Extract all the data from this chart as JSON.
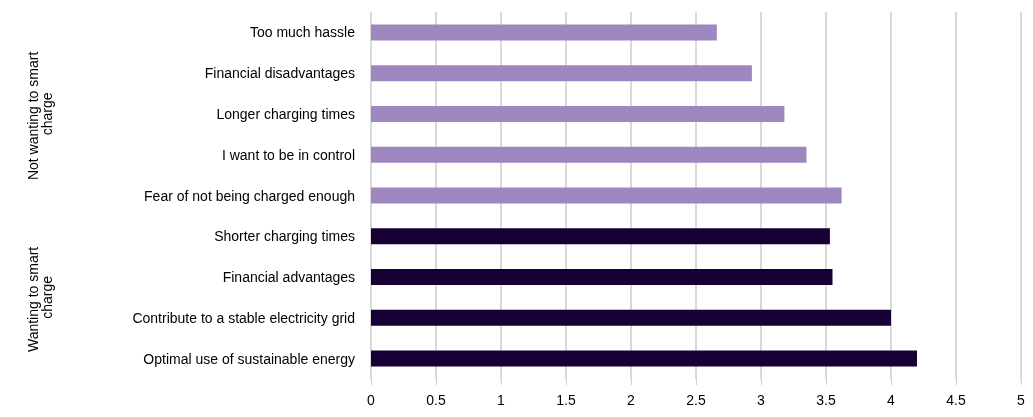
{
  "chart_data": {
    "type": "bar",
    "orientation": "horizontal",
    "categories": [
      "Too much hassle",
      "Financial disadvantages",
      "Longer charging times",
      "I want to be in control",
      "Fear of not being charged enough",
      "Shorter charging times",
      "Financial advantages",
      "Contribute to a stable electricity grid",
      "Optimal use of sustainable energy"
    ],
    "values": [
      2.66,
      2.93,
      3.18,
      3.35,
      3.62,
      3.53,
      3.55,
      4.0,
      4.2
    ],
    "colors": [
      "#9e87be",
      "#9e87be",
      "#9e87be",
      "#9e87be",
      "#9e87be",
      "#170033",
      "#170033",
      "#170033",
      "#170033"
    ],
    "annotations": [
      "Not wanting to smart charge",
      "Wanting to smart charge"
    ],
    "xlim": [
      0,
      5
    ],
    "xticks": [
      0,
      0.5,
      1,
      1.5,
      2,
      2.5,
      3,
      3.5,
      4,
      4.5,
      5
    ],
    "grid": "x"
  }
}
